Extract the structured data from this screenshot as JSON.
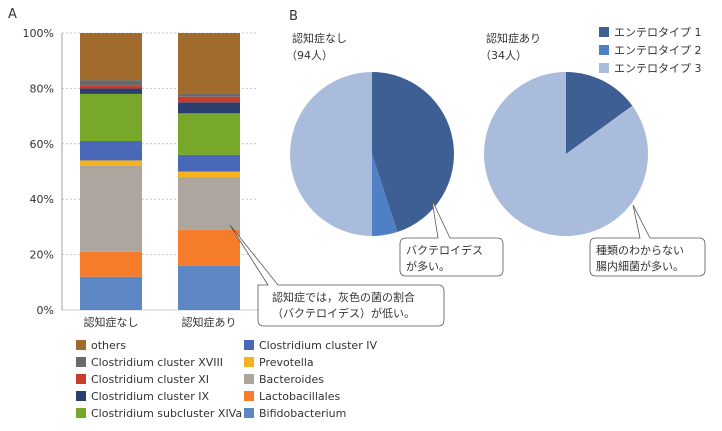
{
  "panel_labels": {
    "a": "A",
    "b": "B"
  },
  "chart_data": [
    {
      "type": "bar",
      "stacked": true,
      "categories": [
        "認知症なし",
        "認知症あり"
      ],
      "ytick_labels": [
        "0%",
        "20%",
        "40%",
        "60%",
        "80%",
        "100%"
      ],
      "ylim": [
        0,
        100
      ],
      "series": [
        {
          "name": "Bifidobacterium",
          "color": "#5c86c4",
          "values": [
            12,
            16
          ]
        },
        {
          "name": "Lactobacillales",
          "color": "#f47c2a",
          "values": [
            9,
            13
          ]
        },
        {
          "name": "Bacteroides",
          "color": "#aca69f",
          "values": [
            31,
            19
          ]
        },
        {
          "name": "Prevotella",
          "color": "#f6b11e",
          "values": [
            2,
            2
          ]
        },
        {
          "name": "Clostridium cluster IV",
          "color": "#4a68b8",
          "values": [
            7,
            6
          ]
        },
        {
          "name": "Clostridium subcluster XIVa",
          "color": "#78a82a",
          "values": [
            17,
            15
          ]
        },
        {
          "name": "Clostridium cluster IX",
          "color": "#2a3f6c",
          "values": [
            2,
            4
          ]
        },
        {
          "name": "Clostridium cluster XI",
          "color": "#cc3a2a",
          "values": [
            1,
            2
          ]
        },
        {
          "name": "Clostridium cluster XVIII",
          "color": "#6a6a6a",
          "values": [
            2,
            1
          ]
        },
        {
          "name": "others",
          "color": "#a06b2c",
          "values": [
            17,
            22
          ]
        }
      ],
      "legend": {
        "placement": "bottom",
        "rows": [
          [
            "others",
            "Clostridium cluster IV"
          ],
          [
            "Clostridium cluster XVIII",
            "Prevotella"
          ],
          [
            "Clostridium cluster XI",
            "Bacteroides"
          ],
          [
            "Clostridium cluster IX",
            "Lactobacillales"
          ],
          [
            "Clostridium subcluster XIVa",
            "Bifidobacterium"
          ]
        ],
        "display_labels": {
          "Clostridium cluster XVIII": "Clostridium cluster XVIII",
          "Clostridium subcluster XIVa": "Clostridium subcluster XIVa"
        }
      },
      "annotation": "認知症では，灰色の菌の割合\n（バクテロイデス）が低い。"
    },
    {
      "type": "pie",
      "title": "認知症なし",
      "subtitle": "（94人）",
      "labels": [
        "エンテロタイプ 1",
        "エンテロタイプ 2",
        "エンテロタイプ 3"
      ],
      "values": [
        45,
        5,
        50
      ],
      "colors": [
        "#3e5f94",
        "#4f80c6",
        "#a9bcdb"
      ],
      "annotation": "バクテロイデス\nが多い。"
    },
    {
      "type": "pie",
      "title": "認知症あり",
      "subtitle": "（34人）",
      "labels": [
        "エンテロタイプ 1",
        "エンテロタイプ 2",
        "エンテロタイプ 3"
      ],
      "values": [
        15,
        0,
        85
      ],
      "colors": [
        "#3e5f94",
        "#4f80c6",
        "#a9bcdb"
      ],
      "annotation": "種類のわからない\n腸内細菌が多い。"
    }
  ],
  "pie_legend": {
    "placement": "top-right",
    "items": [
      {
        "label": "エンテロタイプ 1",
        "color": "#3e5f94"
      },
      {
        "label": "エンテロタイプ 2",
        "color": "#4f80c6"
      },
      {
        "label": "エンテロタイプ 3",
        "color": "#a9bcdb"
      }
    ]
  }
}
